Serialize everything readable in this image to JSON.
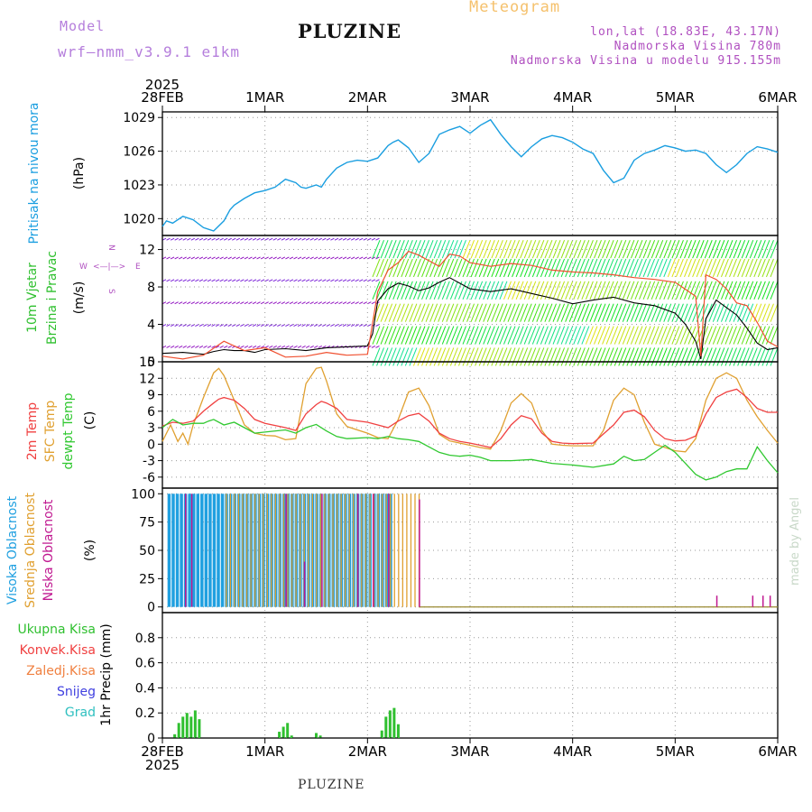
{
  "header": {
    "title": "PLUZINE",
    "model_label": "Model",
    "model_version": "wrf—nmm_v3.9.1 e1km",
    "product": "Meteogram",
    "coords": "lon,lat (18.83E, 43.17N)",
    "elevation": "Nadmorska Visina 780m",
    "model_elevation": "Nadmorska Visina u modelu 915.155m"
  },
  "footer": {
    "location": "PLUZINE",
    "signature": "made by Angel"
  },
  "colors": {
    "pressure": "#1a9ee0",
    "temp2m": "#f04040",
    "sfc": "#e0a030",
    "dewpt": "#30c830",
    "high": "#20a0e0",
    "mid": "#e0a030",
    "low": "#c01890",
    "precip": "#30c030",
    "axis_label_wind": "#30c030"
  },
  "chart_data": [
    {
      "type": "line",
      "panel": "pressure",
      "year_label_top": "2025",
      "year_label_bottom": "2025",
      "x_ticks": [
        "28FEB",
        "1MAR",
        "2MAR",
        "3MAR",
        "4MAR",
        "5MAR",
        "6MAR"
      ],
      "ylabel": "Pritisak na nivou mora",
      "unit": "(hPa)",
      "ylim": [
        1018.5,
        1029.5
      ],
      "yticks": [
        1020,
        1023,
        1026,
        1029
      ],
      "series": [
        {
          "key": "pressure",
          "x": [
            0,
            0.04,
            0.1,
            0.2,
            0.3,
            0.4,
            0.5,
            0.6,
            0.66,
            0.7,
            0.8,
            0.9,
            1.0,
            1.1,
            1.2,
            1.3,
            1.35,
            1.4,
            1.5,
            1.55,
            1.6,
            1.7,
            1.8,
            1.9,
            2.0,
            2.1,
            2.2,
            2.25,
            2.3,
            2.4,
            2.5,
            2.6,
            2.7,
            2.8,
            2.9,
            3.0,
            3.1,
            3.2,
            3.3,
            3.4,
            3.5,
            3.6,
            3.7,
            3.8,
            3.9,
            4.0,
            4.1,
            4.2,
            4.3,
            4.4,
            4.5,
            4.6,
            4.7,
            4.8,
            4.9,
            5.0,
            5.1,
            5.2,
            5.3,
            5.4,
            5.5,
            5.6,
            5.7,
            5.8,
            5.9,
            6.0
          ],
          "y": [
            1019.3,
            1019.8,
            1019.6,
            1020.2,
            1019.9,
            1019.2,
            1018.9,
            1019.8,
            1020.8,
            1021.2,
            1021.8,
            1022.3,
            1022.5,
            1022.8,
            1023.5,
            1023.2,
            1022.8,
            1022.7,
            1023.0,
            1022.8,
            1023.5,
            1024.5,
            1025.0,
            1025.2,
            1025.1,
            1025.4,
            1026.5,
            1026.8,
            1027.0,
            1026.3,
            1025.0,
            1025.8,
            1027.5,
            1027.9,
            1028.2,
            1027.6,
            1028.3,
            1028.8,
            1027.5,
            1026.4,
            1025.5,
            1026.4,
            1027.1,
            1027.4,
            1027.2,
            1026.8,
            1026.2,
            1025.8,
            1024.3,
            1023.2,
            1023.6,
            1025.2,
            1025.8,
            1026.1,
            1026.5,
            1026.3,
            1026.0,
            1026.1,
            1025.8,
            1024.8,
            1024.1,
            1024.8,
            1025.8,
            1026.4,
            1026.2,
            1025.9
          ]
        }
      ]
    },
    {
      "type": "line",
      "panel": "wind",
      "ylabel_line1": "10m Vjetar",
      "ylabel_line2": "Brzina i Pravac",
      "unit": "(m/s)",
      "compass": {
        "n": "N",
        "s": "S",
        "w": "W",
        "e": "E"
      },
      "ylim": [
        0,
        13.5
      ],
      "yticks": [
        0,
        4,
        8,
        12
      ],
      "series": [
        {
          "key": "wind_speed",
          "x": [
            0,
            0.2,
            0.4,
            0.5,
            0.6,
            0.7,
            0.8,
            0.9,
            1.0,
            1.2,
            1.4,
            1.6,
            1.8,
            2.0,
            2.05,
            2.1,
            2.2,
            2.3,
            2.4,
            2.5,
            2.6,
            2.7,
            2.8,
            2.9,
            3.0,
            3.2,
            3.4,
            3.6,
            3.8,
            4.0,
            4.2,
            4.4,
            4.6,
            4.8,
            5.0,
            5.1,
            5.2,
            5.25,
            5.3,
            5.4,
            5.5,
            5.6,
            5.7,
            5.8,
            5.9,
            6.0
          ],
          "y": [
            0.9,
            1.0,
            0.8,
            1.1,
            1.3,
            1.2,
            1.2,
            1.0,
            1.3,
            1.4,
            1.2,
            1.5,
            1.6,
            1.7,
            3.0,
            6.5,
            7.8,
            8.4,
            8.1,
            7.6,
            7.9,
            8.5,
            9.0,
            8.4,
            7.8,
            7.5,
            7.8,
            7.3,
            6.8,
            6.2,
            6.6,
            6.9,
            6.3,
            6.0,
            5.2,
            4.0,
            2.2,
            0.3,
            4.6,
            6.6,
            5.8,
            5.0,
            3.6,
            2.0,
            1.3,
            1.5
          ]
        },
        {
          "key": "wind_gust",
          "x": [
            0,
            0.2,
            0.4,
            0.6,
            0.8,
            1.0,
            1.2,
            1.4,
            1.6,
            1.8,
            2.0,
            2.1,
            2.2,
            2.3,
            2.4,
            2.5,
            2.6,
            2.7,
            2.8,
            2.9,
            3.0,
            3.2,
            3.4,
            3.6,
            3.8,
            4.0,
            4.2,
            4.4,
            4.6,
            4.8,
            5.0,
            5.2,
            5.25,
            5.3,
            5.4,
            5.5,
            5.6,
            5.7,
            5.8,
            5.9,
            6.0
          ],
          "y": [
            0.6,
            0.3,
            0.7,
            2.2,
            1.2,
            1.5,
            0.5,
            0.6,
            1.0,
            0.7,
            0.8,
            7.5,
            9.8,
            10.6,
            11.8,
            11.4,
            10.8,
            10.2,
            11.5,
            11.3,
            10.6,
            10.2,
            10.5,
            10.3,
            9.8,
            9.6,
            9.5,
            9.3,
            9.0,
            8.8,
            8.5,
            7.0,
            0.6,
            9.3,
            8.8,
            7.8,
            6.3,
            6.0,
            4.2,
            2.2,
            1.6
          ]
        }
      ]
    },
    {
      "type": "line",
      "panel": "temperature",
      "ylabel_t2m": "2m Temp",
      "ylabel_sfc": "SFC Temp",
      "ylabel_dew": "dewpt Temp",
      "unit": "(C)",
      "ylim": [
        -8,
        15
      ],
      "yticks": [
        -6,
        -3,
        0,
        3,
        6,
        9,
        12,
        15
      ],
      "series": [
        {
          "key": "temp2m",
          "x": [
            0,
            0.1,
            0.2,
            0.3,
            0.4,
            0.5,
            0.55,
            0.6,
            0.7,
            0.8,
            0.9,
            1.0,
            1.2,
            1.3,
            1.4,
            1.5,
            1.55,
            1.6,
            1.7,
            1.8,
            2.0,
            2.1,
            2.2,
            2.3,
            2.4,
            2.5,
            2.6,
            2.7,
            2.8,
            2.9,
            3.0,
            3.1,
            3.2,
            3.3,
            3.4,
            3.5,
            3.6,
            3.7,
            3.8,
            3.9,
            4.0,
            4.2,
            4.4,
            4.5,
            4.6,
            4.7,
            4.8,
            4.9,
            5.0,
            5.1,
            5.2,
            5.3,
            5.4,
            5.5,
            5.6,
            5.7,
            5.8,
            5.9,
            6.0
          ],
          "y": [
            3.3,
            4.0,
            3.8,
            4.2,
            6.0,
            7.5,
            8.2,
            8.5,
            8.0,
            6.5,
            4.5,
            3.8,
            3.0,
            2.5,
            5.5,
            7.2,
            7.8,
            7.5,
            6.5,
            4.5,
            4.0,
            3.5,
            3.0,
            4.2,
            5.2,
            5.6,
            4.2,
            2.0,
            1.0,
            0.5,
            0.2,
            -0.2,
            -0.6,
            1.0,
            3.5,
            5.2,
            4.6,
            2.0,
            0.5,
            0.2,
            0.1,
            0.2,
            3.5,
            5.8,
            6.2,
            5.0,
            2.5,
            1.0,
            0.6,
            0.7,
            1.5,
            5.5,
            8.5,
            9.5,
            10.0,
            8.5,
            6.5,
            5.8,
            5.8
          ]
        },
        {
          "key": "sfc",
          "x": [
            0,
            0.08,
            0.15,
            0.2,
            0.25,
            0.3,
            0.4,
            0.5,
            0.55,
            0.6,
            0.7,
            0.8,
            0.9,
            1.0,
            1.1,
            1.2,
            1.3,
            1.35,
            1.4,
            1.5,
            1.55,
            1.6,
            1.7,
            1.8,
            2.0,
            2.1,
            2.2,
            2.3,
            2.4,
            2.5,
            2.6,
            2.7,
            2.8,
            2.9,
            3.0,
            3.1,
            3.2,
            3.3,
            3.4,
            3.5,
            3.6,
            3.7,
            3.8,
            3.9,
            4.0,
            4.2,
            4.3,
            4.4,
            4.5,
            4.6,
            4.7,
            4.8,
            4.9,
            5.0,
            5.1,
            5.2,
            5.3,
            5.4,
            5.5,
            5.6,
            5.7,
            5.8,
            5.9,
            6.0
          ],
          "y": [
            0.5,
            3.5,
            0.5,
            2.0,
            0.0,
            3.5,
            8.5,
            13.0,
            13.8,
            12.5,
            8.0,
            3.5,
            2.0,
            1.6,
            1.5,
            0.8,
            1.0,
            6.0,
            11.0,
            13.8,
            14.0,
            11.5,
            5.5,
            3.2,
            2.0,
            1.2,
            1.0,
            4.5,
            9.5,
            10.2,
            7.0,
            1.8,
            0.6,
            0.2,
            -0.2,
            -0.6,
            -0.9,
            2.5,
            7.5,
            9.2,
            7.5,
            2.5,
            0.0,
            -0.2,
            -0.3,
            -0.3,
            2.5,
            8.0,
            10.2,
            9.0,
            4.0,
            0.0,
            -0.6,
            -1.2,
            -1.4,
            1.0,
            8.0,
            12.0,
            13.0,
            12.0,
            8.0,
            5.0,
            2.5,
            0.2
          ]
        },
        {
          "key": "dewpt",
          "x": [
            0,
            0.1,
            0.2,
            0.3,
            0.4,
            0.45,
            0.5,
            0.6,
            0.7,
            0.8,
            0.9,
            1.0,
            1.2,
            1.3,
            1.4,
            1.5,
            1.6,
            1.7,
            1.8,
            2.0,
            2.1,
            2.2,
            2.3,
            2.4,
            2.5,
            2.6,
            2.7,
            2.8,
            2.9,
            3.0,
            3.1,
            3.2,
            3.4,
            3.6,
            3.8,
            4.0,
            4.2,
            4.4,
            4.5,
            4.6,
            4.7,
            4.8,
            4.9,
            5.0,
            5.1,
            5.2,
            5.3,
            5.4,
            5.5,
            5.6,
            5.7,
            5.8,
            5.9,
            6.0
          ],
          "y": [
            3.0,
            4.5,
            3.5,
            3.8,
            3.8,
            4.2,
            4.5,
            3.5,
            4.0,
            3.0,
            2.0,
            2.2,
            2.6,
            2.0,
            3.0,
            3.6,
            2.4,
            1.4,
            1.0,
            1.2,
            1.0,
            1.4,
            1.0,
            0.8,
            0.5,
            -0.5,
            -1.5,
            -2.0,
            -2.2,
            -2.0,
            -2.4,
            -3.0,
            -3.0,
            -2.8,
            -3.5,
            -3.8,
            -4.2,
            -3.6,
            -2.2,
            -3.0,
            -2.8,
            -1.5,
            -0.2,
            -1.5,
            -3.5,
            -5.5,
            -6.5,
            -6.0,
            -5.0,
            -4.5,
            -4.5,
            -0.5,
            -3.0,
            -5.2
          ]
        }
      ]
    },
    {
      "type": "bar",
      "panel": "clouds",
      "ylabel_high": "Visoka Oblacnost",
      "ylabel_mid": "Srednja Oblacnost",
      "ylabel_low": "Niska Oblacnost",
      "unit": "(%)",
      "ylim": [
        -5,
        105
      ],
      "yticks": [
        0,
        25,
        50,
        75,
        100
      ],
      "series": [
        {
          "key": "high",
          "x_start": 0.05,
          "x_end": 2.25,
          "step": 0.04,
          "typical": 100
        },
        {
          "key": "mid",
          "x_start": 0.6,
          "x_end": 2.5,
          "step": 0.04,
          "typical": 100
        },
        {
          "key": "low",
          "x": [
            0.22,
            0.28,
            1.2,
            1.38,
            1.55,
            1.9,
            2.05,
            2.2,
            2.5,
            5.4,
            5.75,
            5.85,
            5.92
          ],
          "y": [
            100,
            100,
            100,
            40,
            100,
            100,
            100,
            100,
            95,
            10,
            10,
            10,
            10
          ]
        }
      ]
    },
    {
      "type": "bar",
      "panel": "precip",
      "ylabel": "1hr Precip (mm)",
      "legend": [
        "Ukupna Kisa",
        "Konvek.Kisa",
        "Zaledj.Kisa",
        "Snijeg",
        "Grad"
      ],
      "legend_colors": [
        "#30c030",
        "#f04040",
        "#f08040",
        "#4040e0",
        "#30c0c0"
      ],
      "ylim": [
        0,
        1.0
      ],
      "yticks": [
        0,
        0.2,
        0.4,
        0.6,
        0.8
      ],
      "series": [
        {
          "key": "precip",
          "x": [
            0.12,
            0.16,
            0.2,
            0.24,
            0.28,
            0.32,
            0.36,
            1.14,
            1.18,
            1.22,
            1.26,
            1.5,
            1.54,
            2.14,
            2.18,
            2.22,
            2.26,
            2.3
          ],
          "y": [
            0.03,
            0.12,
            0.17,
            0.2,
            0.17,
            0.22,
            0.15,
            0.05,
            0.09,
            0.12,
            0.02,
            0.04,
            0.02,
            0.06,
            0.17,
            0.22,
            0.24,
            0.11
          ]
        }
      ]
    }
  ]
}
